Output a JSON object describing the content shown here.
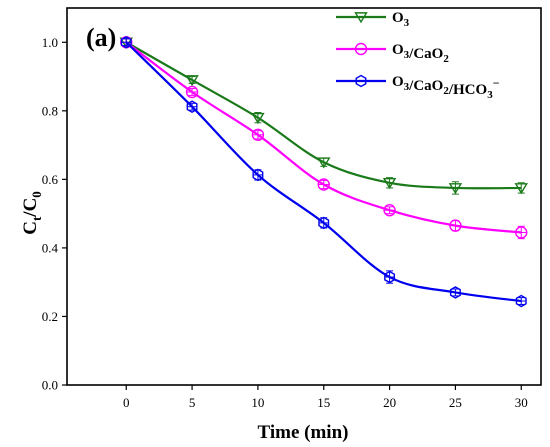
{
  "chart_data": {
    "type": "line",
    "panel_label": "(a)",
    "xlabel": "Time (min)",
    "ylabel": "Ct/C0",
    "xlim": [
      -4.5,
      31.5
    ],
    "ylim": [
      0.0,
      1.1
    ],
    "xticks": [
      0,
      5,
      10,
      15,
      20,
      25,
      30
    ],
    "yticks": [
      "0.0",
      "0.2",
      "0.4",
      "0.6",
      "0.8",
      "1.0"
    ],
    "grid": false,
    "legend_placement": "top-right",
    "x": [
      0,
      5,
      10,
      15,
      20,
      25,
      30
    ],
    "series": [
      {
        "name": "O3",
        "color": "#1a7a1a",
        "marker": "triangle-down-icon",
        "values": [
          1.0,
          0.89,
          0.78,
          0.65,
          0.59,
          0.575,
          0.575
        ],
        "errors": [
          0.01,
          0.01,
          0.015,
          0.012,
          0.015,
          0.018,
          0.015
        ]
      },
      {
        "name": "O3/CaO2",
        "color": "#ff00ff",
        "marker": "circle-icon",
        "values": [
          1.0,
          0.855,
          0.73,
          0.585,
          0.51,
          0.465,
          0.445
        ],
        "errors": [
          0.01,
          0.01,
          0.012,
          0.012,
          0.01,
          0.015,
          0.018
        ]
      },
      {
        "name": "O3/CaO2/HCO3−",
        "color": "#0000ee",
        "marker": "hexagon-icon",
        "values": [
          1.0,
          0.812,
          0.613,
          0.473,
          0.315,
          0.27,
          0.245
        ],
        "errors": [
          0.01,
          0.01,
          0.015,
          0.015,
          0.018,
          0.01,
          0.01
        ]
      }
    ]
  }
}
